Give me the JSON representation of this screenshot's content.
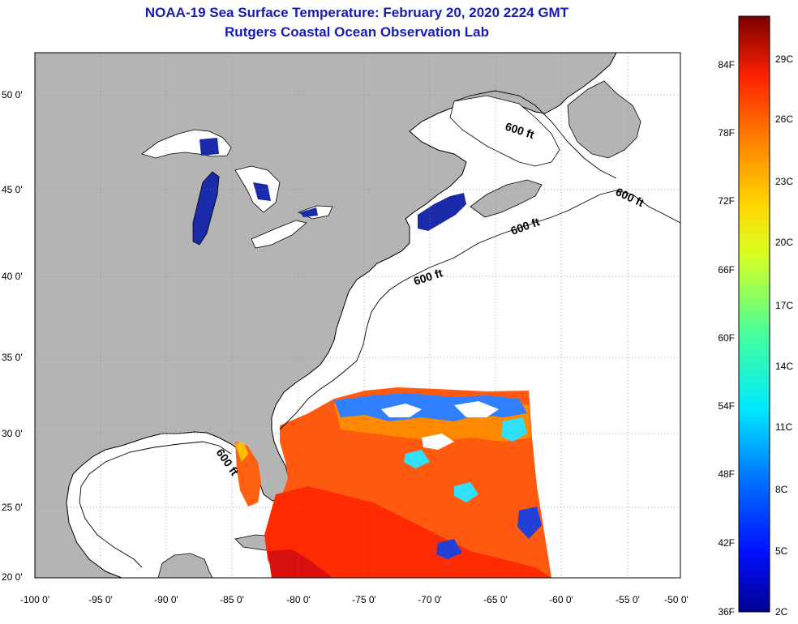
{
  "header": {
    "title_line1": "NOAA-19 Sea Surface Temperature:  February 20, 2020 2224 GMT",
    "title_line2": "Rutgers Coastal Ocean Observation Lab"
  },
  "map": {
    "longitude_labels": [
      "-100 0'",
      "-95 0'",
      "-90 0'",
      "-85 0'",
      "-80 0'",
      "-75 0'",
      "-70 0'",
      "-65 0'",
      "-60 0'",
      "-55 0'",
      "-50 0'"
    ],
    "latitude_labels": [
      "50 0'",
      "45 0'",
      "40 0'",
      "35 0'",
      "30 0'",
      "25 0'",
      "20 0'"
    ],
    "contour_labels": [
      "600 ft",
      "600 ft",
      "600 ft",
      "600 ft",
      "600 ft"
    ],
    "land_color": "#b4b4b4",
    "ocean_color": "#ffffff",
    "lake_color": "#1a2aa8"
  },
  "colorbar": {
    "fahrenheit_labels": [
      "84F",
      "78F",
      "72F",
      "66F",
      "60F",
      "54F",
      "48F",
      "42F",
      "36F"
    ],
    "celsius_labels": [
      "29C",
      "26C",
      "23C",
      "20C",
      "17C",
      "14C",
      "11C",
      "8C",
      "5C",
      "2C"
    ]
  }
}
